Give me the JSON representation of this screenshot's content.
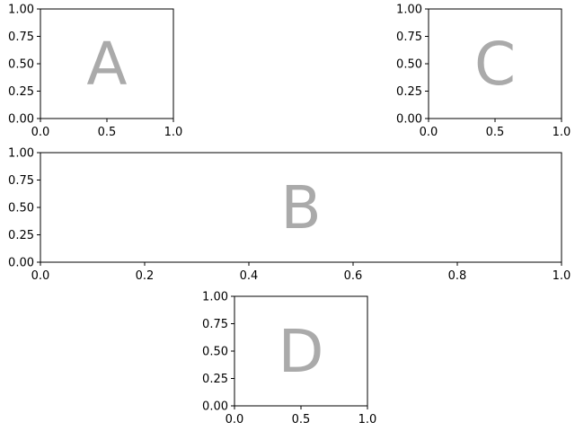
{
  "colors": {
    "background": "#ffffff",
    "axes_edge": "#000000",
    "panel_letter": "#aaaaaa"
  },
  "chart_data": [
    {
      "type": "scatter",
      "title": "",
      "panel_label": "A",
      "xlabel": "",
      "ylabel": "",
      "xlim": [
        0,
        1
      ],
      "ylim": [
        0,
        1
      ],
      "x_ticks": [
        0.0,
        0.5,
        1.0
      ],
      "x_tick_labels": [
        "0.0",
        "0.5",
        "1.0"
      ],
      "y_ticks": [
        0.0,
        0.25,
        0.5,
        0.75,
        1.0
      ],
      "y_tick_labels": [
        "0.00",
        "0.25",
        "0.50",
        "0.75",
        "1.00"
      ],
      "grid": false,
      "series": []
    },
    {
      "type": "scatter",
      "title": "",
      "panel_label": "C",
      "xlabel": "",
      "ylabel": "",
      "xlim": [
        0,
        1
      ],
      "ylim": [
        0,
        1
      ],
      "x_ticks": [
        0.0,
        0.5,
        1.0
      ],
      "x_tick_labels": [
        "0.0",
        "0.5",
        "1.0"
      ],
      "y_ticks": [
        0.0,
        0.25,
        0.5,
        0.75,
        1.0
      ],
      "y_tick_labels": [
        "0.00",
        "0.25",
        "0.50",
        "0.75",
        "1.00"
      ],
      "grid": false,
      "series": []
    },
    {
      "type": "scatter",
      "title": "",
      "panel_label": "B",
      "xlabel": "",
      "ylabel": "",
      "xlim": [
        0,
        1
      ],
      "ylim": [
        0,
        1
      ],
      "x_ticks": [
        0.0,
        0.2,
        0.4,
        0.6,
        0.8,
        1.0
      ],
      "x_tick_labels": [
        "0.0",
        "0.2",
        "0.4",
        "0.6",
        "0.8",
        "1.0"
      ],
      "y_ticks": [
        0.0,
        0.25,
        0.5,
        0.75,
        1.0
      ],
      "y_tick_labels": [
        "0.00",
        "0.25",
        "0.50",
        "0.75",
        "1.00"
      ],
      "grid": false,
      "series": []
    },
    {
      "type": "scatter",
      "title": "",
      "panel_label": "D",
      "xlabel": "",
      "ylabel": "",
      "xlim": [
        0,
        1
      ],
      "ylim": [
        0,
        1
      ],
      "x_ticks": [
        0.0,
        0.5,
        1.0
      ],
      "x_tick_labels": [
        "0.0",
        "0.5",
        "1.0"
      ],
      "y_ticks": [
        0.0,
        0.25,
        0.5,
        0.75,
        1.0
      ],
      "y_tick_labels": [
        "0.00",
        "0.25",
        "0.50",
        "0.75",
        "1.00"
      ],
      "grid": false,
      "series": []
    }
  ]
}
